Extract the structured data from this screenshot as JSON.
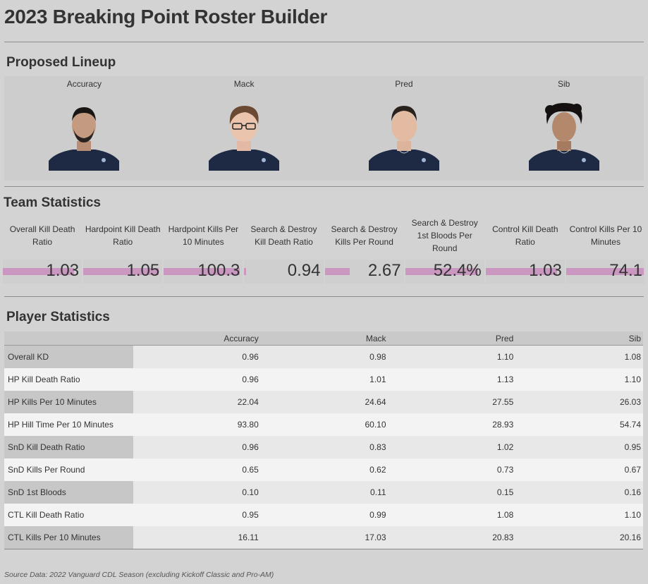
{
  "title": "2023 Breaking Point Roster Builder",
  "lineup": {
    "heading": "Proposed Lineup",
    "players": [
      "Accuracy",
      "Mack",
      "Pred",
      "Sib"
    ]
  },
  "team": {
    "heading": "Team Statistics",
    "bar_color": "#c997bf",
    "stats": [
      {
        "label": "Overall Kill Death Ratio",
        "value": "1.03",
        "level": 0.9
      },
      {
        "label": "Hardpoint Kill Death Ratio",
        "value": "1.05",
        "level": 0.95
      },
      {
        "label": "Hardpoint Kills Per 10 Minutes",
        "value": "100.3",
        "level": 0.96
      },
      {
        "label": "Search & Destroy Kill Death Ratio",
        "value": "0.94",
        "level": 0.02
      },
      {
        "label": "Search & Destroy Kills Per Round",
        "value": "2.67",
        "level": 0.32
      },
      {
        "label": "Search & Destroy 1st Bloods Per Round",
        "value": "52.4%",
        "level": 0.92
      },
      {
        "label": "Control Kill Death Ratio",
        "value": "1.03",
        "level": 0.9
      },
      {
        "label": "Control Kills Per 10 Minutes",
        "value": "74.1",
        "level": 0.98
      }
    ]
  },
  "players": {
    "heading": "Player Statistics",
    "columns": [
      "",
      "Accuracy",
      "Mack",
      "Pred",
      "Sib"
    ],
    "rows": [
      {
        "label": "Overall KD",
        "values": [
          "0.96",
          "0.98",
          "1.10",
          "1.08"
        ]
      },
      {
        "label": "HP Kill Death Ratio",
        "values": [
          "0.96",
          "1.01",
          "1.13",
          "1.10"
        ]
      },
      {
        "label": "HP Kills Per 10 Minutes",
        "values": [
          "22.04",
          "24.64",
          "27.55",
          "26.03"
        ]
      },
      {
        "label": "HP Hill Time Per 10 Minutes",
        "values": [
          "93.80",
          "60.10",
          "28.93",
          "54.74"
        ]
      },
      {
        "label": "SnD Kill Death Ratio",
        "values": [
          "0.96",
          "0.83",
          "1.02",
          "0.95"
        ]
      },
      {
        "label": "SnD Kills Per Round",
        "values": [
          "0.65",
          "0.62",
          "0.73",
          "0.67"
        ]
      },
      {
        "label": "SnD 1st Bloods",
        "values": [
          "0.10",
          "0.11",
          "0.15",
          "0.16"
        ]
      },
      {
        "label": "CTL Kill Death Ratio",
        "values": [
          "0.95",
          "0.99",
          "1.08",
          "1.10"
        ]
      },
      {
        "label": "CTL Kills Per 10 Minutes",
        "values": [
          "16.11",
          "17.03",
          "20.83",
          "20.16"
        ]
      }
    ]
  },
  "source": "Source Data: 2022 Vanguard CDL Season (excluding Kickoff Classic and Pro-AM)"
}
